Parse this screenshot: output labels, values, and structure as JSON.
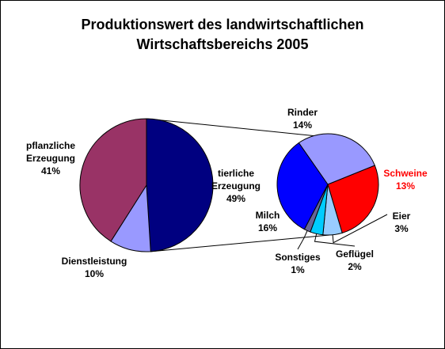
{
  "chart_data": {
    "type": "pie",
    "title_line1": "Produktionswert des landwirtschaftlichen",
    "title_line2": "Wirtschaftsbereichs 2005",
    "main_pie": {
      "slices": [
        {
          "name_line1": "tierliche",
          "name_line2": "Erzeugung",
          "value": 49,
          "pct": "49%",
          "color": "#000080"
        },
        {
          "name_line1": "Dienstleistung",
          "name_line2": "",
          "value": 10,
          "pct": "10%",
          "color": "#9999ff"
        },
        {
          "name_line1": "pflanzliche",
          "name_line2": "Erzeugung",
          "value": 41,
          "pct": "41%",
          "color": "#993366"
        }
      ]
    },
    "sub_pie": {
      "slices": [
        {
          "name": "Schweine",
          "value": 13,
          "pct": "13%",
          "color": "#ff0000",
          "label_color": "#ff0000"
        },
        {
          "name": "Eier",
          "value": 3,
          "pct": "3%",
          "color": "#99ccff",
          "label_color": "#000000"
        },
        {
          "name": "Geflügel",
          "value": 2,
          "pct": "2%",
          "color": "#00ccff",
          "label_color": "#000000"
        },
        {
          "name": "Sonstiges",
          "value": 1,
          "pct": "1%",
          "color": "#666699",
          "label_color": "#000000"
        },
        {
          "name": "Milch",
          "value": 16,
          "pct": "16%",
          "color": "#0000ff",
          "label_color": "#000000"
        },
        {
          "name": "Rinder",
          "value": 14,
          "pct": "14%",
          "color": "#9999ff",
          "label_color": "#000000"
        }
      ]
    }
  }
}
